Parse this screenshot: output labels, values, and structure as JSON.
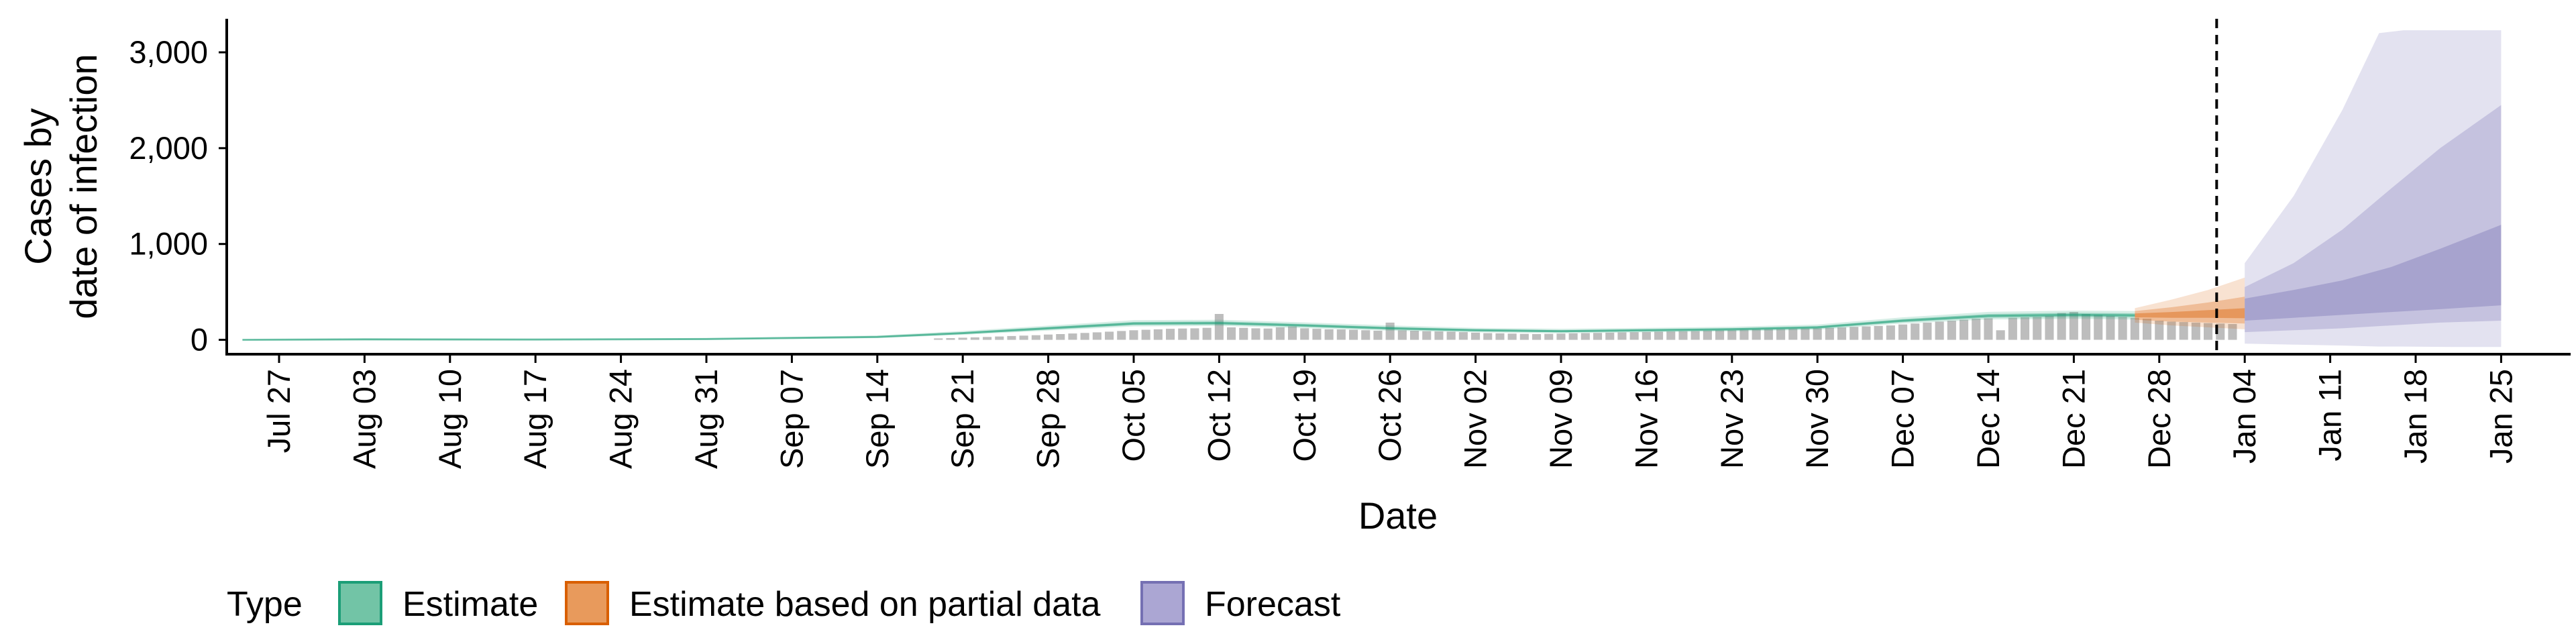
{
  "chart_data": {
    "type": "area",
    "xlabel": "Date",
    "ylabel_lines": [
      "Cases by",
      "date of infection"
    ],
    "x_tick_labels": [
      "Jul 27",
      "Aug 03",
      "Aug 10",
      "Aug 17",
      "Aug 24",
      "Aug 31",
      "Sep 07",
      "Sep 14",
      "Sep 21",
      "Sep 28",
      "Oct 05",
      "Oct 12",
      "Oct 19",
      "Oct 26",
      "Nov 02",
      "Nov 09",
      "Nov 16",
      "Nov 23",
      "Nov 30",
      "Dec 07",
      "Dec 14",
      "Dec 21",
      "Dec 28",
      "Jan 04",
      "Jan 11",
      "Jan 18",
      "Jan 25"
    ],
    "y_ticks": [
      0,
      1000,
      2000,
      3000
    ],
    "y_tick_labels": [
      "0",
      "1,000",
      "2,000",
      "3,000"
    ],
    "ylim": [
      -150,
      3350
    ],
    "grid": false,
    "legend_position": "bottom",
    "legend_title": "Type",
    "legend_items": [
      {
        "label": "Estimate",
        "fill": "#72C4A6",
        "stroke": "#1B9E77"
      },
      {
        "label": "Estimate based on partial data",
        "fill": "#E89A5C",
        "stroke": "#D95F02"
      },
      {
        "label": "Forecast",
        "fill": "#ABA6D3",
        "stroke": "#7570B3"
      }
    ],
    "colors": {
      "estimate": "#1B9E77",
      "partial": "#D95F02",
      "forecast": "#7570B3",
      "bars": "#BDBDBD",
      "vline": "#000000"
    },
    "vline_date": "Jan 01",
    "x_domain_days": [
      -7,
      182
    ],
    "x_tick_days": [
      0,
      7,
      14,
      21,
      28,
      35,
      42,
      49,
      56,
      63,
      70,
      77,
      84,
      91,
      98,
      105,
      112,
      119,
      126,
      133,
      140,
      147,
      154,
      161,
      168,
      175,
      182
    ],
    "bars": [
      {
        "x": 54,
        "y": 15
      },
      {
        "x": 55,
        "y": 18
      },
      {
        "x": 56,
        "y": 22
      },
      {
        "x": 57,
        "y": 26
      },
      {
        "x": 58,
        "y": 30
      },
      {
        "x": 59,
        "y": 35
      },
      {
        "x": 60,
        "y": 40
      },
      {
        "x": 61,
        "y": 44
      },
      {
        "x": 62,
        "y": 48
      },
      {
        "x": 63,
        "y": 55
      },
      {
        "x": 64,
        "y": 60
      },
      {
        "x": 65,
        "y": 66
      },
      {
        "x": 66,
        "y": 72
      },
      {
        "x": 67,
        "y": 78
      },
      {
        "x": 68,
        "y": 85
      },
      {
        "x": 69,
        "y": 92
      },
      {
        "x": 70,
        "y": 100
      },
      {
        "x": 71,
        "y": 105
      },
      {
        "x": 72,
        "y": 110
      },
      {
        "x": 73,
        "y": 115
      },
      {
        "x": 74,
        "y": 118
      },
      {
        "x": 75,
        "y": 120
      },
      {
        "x": 76,
        "y": 125
      },
      {
        "x": 77,
        "y": 270
      },
      {
        "x": 78,
        "y": 130
      },
      {
        "x": 79,
        "y": 125
      },
      {
        "x": 80,
        "y": 120
      },
      {
        "x": 81,
        "y": 118
      },
      {
        "x": 82,
        "y": 130
      },
      {
        "x": 83,
        "y": 140
      },
      {
        "x": 84,
        "y": 120
      },
      {
        "x": 85,
        "y": 115
      },
      {
        "x": 86,
        "y": 110
      },
      {
        "x": 87,
        "y": 108
      },
      {
        "x": 88,
        "y": 105
      },
      {
        "x": 89,
        "y": 100
      },
      {
        "x": 90,
        "y": 95
      },
      {
        "x": 91,
        "y": 180
      },
      {
        "x": 92,
        "y": 100
      },
      {
        "x": 93,
        "y": 95
      },
      {
        "x": 94,
        "y": 90
      },
      {
        "x": 95,
        "y": 88
      },
      {
        "x": 96,
        "y": 85
      },
      {
        "x": 97,
        "y": 80
      },
      {
        "x": 98,
        "y": 75
      },
      {
        "x": 99,
        "y": 70
      },
      {
        "x": 100,
        "y": 68
      },
      {
        "x": 101,
        "y": 65
      },
      {
        "x": 102,
        "y": 62
      },
      {
        "x": 103,
        "y": 60
      },
      {
        "x": 104,
        "y": 62
      },
      {
        "x": 105,
        "y": 65
      },
      {
        "x": 106,
        "y": 68
      },
      {
        "x": 107,
        "y": 70
      },
      {
        "x": 108,
        "y": 72
      },
      {
        "x": 109,
        "y": 75
      },
      {
        "x": 110,
        "y": 78
      },
      {
        "x": 111,
        "y": 80
      },
      {
        "x": 112,
        "y": 82
      },
      {
        "x": 113,
        "y": 85
      },
      {
        "x": 114,
        "y": 88
      },
      {
        "x": 115,
        "y": 90
      },
      {
        "x": 116,
        "y": 92
      },
      {
        "x": 117,
        "y": 95
      },
      {
        "x": 118,
        "y": 98
      },
      {
        "x": 119,
        "y": 100
      },
      {
        "x": 120,
        "y": 105
      },
      {
        "x": 121,
        "y": 108
      },
      {
        "x": 122,
        "y": 110
      },
      {
        "x": 123,
        "y": 112
      },
      {
        "x": 124,
        "y": 115
      },
      {
        "x": 125,
        "y": 118
      },
      {
        "x": 126,
        "y": 120
      },
      {
        "x": 127,
        "y": 125
      },
      {
        "x": 128,
        "y": 130
      },
      {
        "x": 129,
        "y": 135
      },
      {
        "x": 130,
        "y": 140
      },
      {
        "x": 131,
        "y": 145
      },
      {
        "x": 132,
        "y": 150
      },
      {
        "x": 133,
        "y": 160
      },
      {
        "x": 134,
        "y": 170
      },
      {
        "x": 135,
        "y": 180
      },
      {
        "x": 136,
        "y": 190
      },
      {
        "x": 137,
        "y": 200
      },
      {
        "x": 138,
        "y": 210
      },
      {
        "x": 139,
        "y": 220
      },
      {
        "x": 140,
        "y": 225
      },
      {
        "x": 141,
        "y": 100
      },
      {
        "x": 142,
        "y": 230
      },
      {
        "x": 143,
        "y": 235
      },
      {
        "x": 144,
        "y": 240
      },
      {
        "x": 145,
        "y": 250
      },
      {
        "x": 146,
        "y": 280
      },
      {
        "x": 147,
        "y": 290
      },
      {
        "x": 148,
        "y": 270
      },
      {
        "x": 149,
        "y": 260
      },
      {
        "x": 150,
        "y": 250
      },
      {
        "x": 151,
        "y": 240
      },
      {
        "x": 152,
        "y": 230
      },
      {
        "x": 153,
        "y": 220
      },
      {
        "x": 154,
        "y": 200
      },
      {
        "x": 155,
        "y": 190
      },
      {
        "x": 156,
        "y": 185
      },
      {
        "x": 157,
        "y": 180
      },
      {
        "x": 158,
        "y": 175
      },
      {
        "x": 159,
        "y": 170
      },
      {
        "x": 160,
        "y": 165
      }
    ],
    "estimate": {
      "median": [
        [
          -3,
          0
        ],
        [
          7,
          5
        ],
        [
          21,
          3
        ],
        [
          35,
          8
        ],
        [
          49,
          30
        ],
        [
          56,
          70
        ],
        [
          63,
          120
        ],
        [
          70,
          170
        ],
        [
          77,
          175
        ],
        [
          84,
          150
        ],
        [
          91,
          120
        ],
        [
          98,
          100
        ],
        [
          105,
          90
        ],
        [
          112,
          100
        ],
        [
          119,
          110
        ],
        [
          126,
          130
        ],
        [
          133,
          200
        ],
        [
          140,
          250
        ],
        [
          147,
          260
        ],
        [
          152,
          255
        ]
      ],
      "outer": [
        [
          -3,
          -5,
          5
        ],
        [
          7,
          -5,
          15
        ],
        [
          21,
          -5,
          10
        ],
        [
          35,
          0,
          18
        ],
        [
          49,
          18,
          45
        ],
        [
          56,
          52,
          92
        ],
        [
          63,
          96,
          148
        ],
        [
          70,
          140,
          205
        ],
        [
          77,
          145,
          210
        ],
        [
          84,
          122,
          182
        ],
        [
          91,
          95,
          150
        ],
        [
          98,
          78,
          125
        ],
        [
          105,
          68,
          115
        ],
        [
          112,
          78,
          125
        ],
        [
          119,
          88,
          136
        ],
        [
          126,
          105,
          160
        ],
        [
          133,
          170,
          235
        ],
        [
          140,
          212,
          292
        ],
        [
          147,
          218,
          305
        ],
        [
          152,
          212,
          300
        ]
      ],
      "inner": [
        [
          -3,
          -2,
          3
        ],
        [
          7,
          0,
          10
        ],
        [
          21,
          0,
          7
        ],
        [
          35,
          4,
          12
        ],
        [
          49,
          24,
          36
        ],
        [
          56,
          60,
          80
        ],
        [
          63,
          106,
          134
        ],
        [
          70,
          154,
          186
        ],
        [
          77,
          158,
          192
        ],
        [
          84,
          135,
          165
        ],
        [
          91,
          106,
          134
        ],
        [
          98,
          88,
          112
        ],
        [
          105,
          79,
          101
        ],
        [
          112,
          88,
          112
        ],
        [
          119,
          98,
          122
        ],
        [
          126,
          117,
          143
        ],
        [
          133,
          184,
          216
        ],
        [
          140,
          230,
          270
        ],
        [
          147,
          238,
          282
        ],
        [
          152,
          234,
          276
        ]
      ]
    },
    "partial": {
      "outer": [
        [
          152,
          180,
          330
        ],
        [
          155,
          150,
          420
        ],
        [
          158,
          130,
          520
        ],
        [
          161,
          110,
          650
        ]
      ],
      "inner": [
        [
          152,
          210,
          300
        ],
        [
          155,
          190,
          340
        ],
        [
          158,
          180,
          390
        ],
        [
          161,
          170,
          450
        ]
      ],
      "center": [
        [
          152,
          235,
          275
        ],
        [
          155,
          230,
          290
        ],
        [
          158,
          230,
          310
        ],
        [
          161,
          225,
          330
        ]
      ]
    },
    "forecast": {
      "outer": [
        [
          161,
          -40,
          800
        ],
        [
          165,
          -50,
          1500
        ],
        [
          169,
          -60,
          2400
        ],
        [
          172,
          -70,
          3200
        ],
        [
          174,
          -70,
          3230
        ],
        [
          178,
          -75,
          3230
        ],
        [
          182,
          -75,
          3230
        ]
      ],
      "inner": [
        [
          161,
          80,
          550
        ],
        [
          165,
          100,
          800
        ],
        [
          169,
          120,
          1150
        ],
        [
          173,
          150,
          1580
        ],
        [
          177,
          180,
          2000
        ],
        [
          182,
          200,
          2450
        ]
      ],
      "center": [
        [
          161,
          200,
          430
        ],
        [
          165,
          230,
          520
        ],
        [
          169,
          260,
          620
        ],
        [
          173,
          290,
          760
        ],
        [
          177,
          320,
          950
        ],
        [
          182,
          360,
          1200
        ]
      ]
    }
  }
}
